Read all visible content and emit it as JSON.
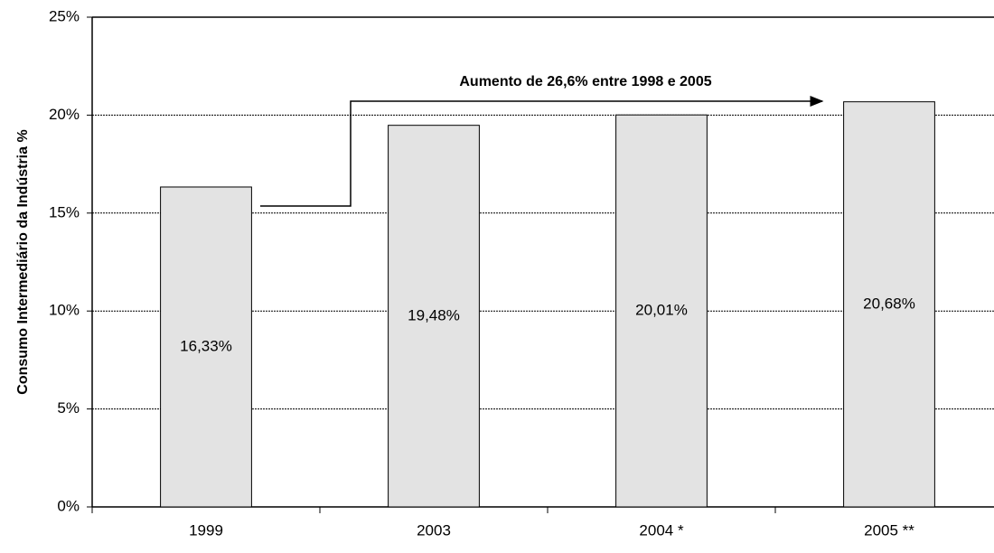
{
  "chart_data": {
    "type": "bar",
    "y_label": "Consumo Intermediário da Indústria %",
    "annotation": "Aumento de 26,6% entre 1998 e 2005",
    "categories": [
      "1999",
      "2003",
      "2004 *",
      "2005 **"
    ],
    "values": [
      16.33,
      19.48,
      20.01,
      20.68
    ],
    "value_labels": [
      "16,33%",
      "19,48%",
      "20,01%",
      "20,68%"
    ],
    "color": "#e3e3e3",
    "ylim": [
      0,
      25
    ],
    "yticks": [
      {
        "value": 0,
        "label": "0%"
      },
      {
        "value": 5,
        "label": "5%"
      },
      {
        "value": 10,
        "label": "10%"
      },
      {
        "value": 15,
        "label": "15%"
      },
      {
        "value": 20,
        "label": "20%"
      },
      {
        "value": 25,
        "label": "25%"
      }
    ],
    "grid": true
  }
}
